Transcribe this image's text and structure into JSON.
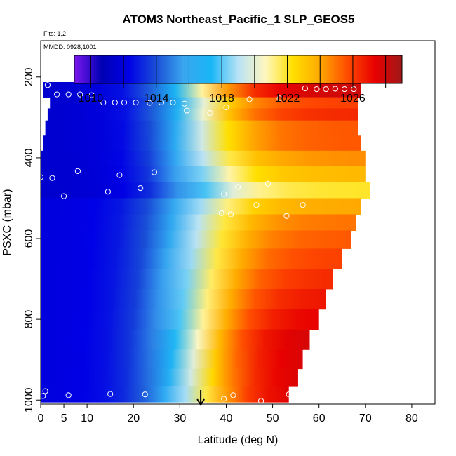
{
  "chart_data": {
    "type": "heatmap",
    "title": "ATOM3 Northeast_Pacific_1 SLP_GEOS5",
    "subtitle_flights": "Flts: 1,2",
    "subtitle_dates": "MMDD: 0928,1001",
    "xlabel": "Latitude (deg N)",
    "ylabel": "PSXC (mbar)",
    "xlim": [
      0,
      85
    ],
    "ylim": [
      1010,
      110
    ],
    "xticks": [
      0,
      5,
      10,
      20,
      30,
      40,
      50,
      60,
      70,
      80
    ],
    "xtick_labels": [
      "0",
      "5",
      "10",
      "20",
      "30",
      "40",
      "50",
      "60",
      "70",
      "80"
    ],
    "yticks": [
      200,
      400,
      600,
      800,
      1000
    ],
    "ytick_labels": [
      "200",
      "400",
      "600",
      "800",
      "1000"
    ],
    "colorbar": {
      "min": 1009,
      "max": 1029,
      "ticks": [
        1010,
        1014,
        1018,
        1022,
        1026
      ],
      "tick_labels": [
        "1010",
        "1014",
        "1018",
        "1022",
        "1026"
      ],
      "colors": [
        "#7a17ec",
        "#0000b4",
        "#0000e6",
        "#1a4fd6",
        "#3aa6f0",
        "#18b6f5",
        "#b8e2f5",
        "#fff7c0",
        "#ffe000",
        "#ffa800",
        "#ff4c00",
        "#e80000",
        "#a01818"
      ]
    },
    "rows": [
      {
        "p": 190,
        "lat0": 10.9,
        "lat1": 29.5,
        "v0": 1012,
        "v1": 1011
      },
      {
        "p": 235,
        "lat0": 0.5,
        "lat1": 69.0,
        "v0": 1011.5,
        "v1": 1028
      },
      {
        "p": 265,
        "lat0": 2.0,
        "lat1": 68.5,
        "v0": 1011.5,
        "v1": 1026
      },
      {
        "p": 290,
        "lat0": 1.5,
        "lat1": 68.5,
        "v0": 1011.5,
        "v1": 1026.5
      },
      {
        "p": 325,
        "lat0": 1.0,
        "lat1": 68.5,
        "v0": 1011.5,
        "v1": 1025.5
      },
      {
        "p": 365,
        "lat0": 0.5,
        "lat1": 69.0,
        "v0": 1011.5,
        "v1": 1025.5
      },
      {
        "p": 400,
        "lat0": 0.0,
        "lat1": 70.0,
        "v0": 1011.5,
        "v1": 1024.5
      },
      {
        "p": 440,
        "lat0": -0.5,
        "lat1": 70.0,
        "v0": 1011.5,
        "v1": 1023.5
      },
      {
        "p": 480,
        "lat0": 0.0,
        "lat1": 71.0,
        "v0": 1011.5,
        "v1": 1022
      },
      {
        "p": 520,
        "lat0": 0.0,
        "lat1": 69.0,
        "v0": 1012,
        "v1": 1024
      },
      {
        "p": 560,
        "lat0": 0.0,
        "lat1": 68.0,
        "v0": 1012,
        "v1": 1025
      },
      {
        "p": 600,
        "lat0": 0.0,
        "lat1": 67.0,
        "v0": 1012,
        "v1": 1025.5
      },
      {
        "p": 650,
        "lat0": 0.0,
        "lat1": 65.0,
        "v0": 1012,
        "v1": 1026
      },
      {
        "p": 700,
        "lat0": 0.0,
        "lat1": 63.0,
        "v0": 1012,
        "v1": 1026.5
      },
      {
        "p": 750,
        "lat0": 0.0,
        "lat1": 61.5,
        "v0": 1012,
        "v1": 1027
      },
      {
        "p": 800,
        "lat0": 0.0,
        "lat1": 60.0,
        "v0": 1012,
        "v1": 1027.5
      },
      {
        "p": 850,
        "lat0": 0.0,
        "lat1": 58.0,
        "v0": 1012,
        "v1": 1028
      },
      {
        "p": 900,
        "lat0": 0.0,
        "lat1": 56.5,
        "v0": 1012,
        "v1": 1028
      },
      {
        "p": 945,
        "lat0": 0.0,
        "lat1": 55.5,
        "v0": 1012,
        "v1": 1028
      },
      {
        "p": 985,
        "lat0": 0.0,
        "lat1": 53.5,
        "v0": 1012,
        "v1": 1028
      }
    ],
    "points": [
      {
        "lat": 11.0,
        "p": 205
      },
      {
        "lat": 19.5,
        "p": 203
      },
      {
        "lat": 26.5,
        "p": 192
      },
      {
        "lat": 29.5,
        "p": 198
      },
      {
        "lat": 1.5,
        "p": 220
      },
      {
        "lat": 57.0,
        "p": 228
      },
      {
        "lat": 59.5,
        "p": 230
      },
      {
        "lat": 61.5,
        "p": 230
      },
      {
        "lat": 63.5,
        "p": 229
      },
      {
        "lat": 65.5,
        "p": 230
      },
      {
        "lat": 67.5,
        "p": 230
      },
      {
        "lat": 3.5,
        "p": 243
      },
      {
        "lat": 6.0,
        "p": 243
      },
      {
        "lat": 8.5,
        "p": 243
      },
      {
        "lat": 11.0,
        "p": 245
      },
      {
        "lat": 45.0,
        "p": 255
      },
      {
        "lat": 51.5,
        "p": 253
      },
      {
        "lat": 13.5,
        "p": 263
      },
      {
        "lat": 16.0,
        "p": 263
      },
      {
        "lat": 18.0,
        "p": 263
      },
      {
        "lat": 20.5,
        "p": 263
      },
      {
        "lat": 23.5,
        "p": 264
      },
      {
        "lat": 26.0,
        "p": 263
      },
      {
        "lat": 28.5,
        "p": 263
      },
      {
        "lat": 31.0,
        "p": 266
      },
      {
        "lat": 40.0,
        "p": 275
      },
      {
        "lat": 31.5,
        "p": 283
      },
      {
        "lat": 36.5,
        "p": 289
      },
      {
        "lat": 8.0,
        "p": 433
      },
      {
        "lat": 24.5,
        "p": 436
      },
      {
        "lat": 0.0,
        "p": 448
      },
      {
        "lat": 2.5,
        "p": 450
      },
      {
        "lat": 17.0,
        "p": 443
      },
      {
        "lat": 42.5,
        "p": 472
      },
      {
        "lat": 49.0,
        "p": 464
      },
      {
        "lat": 14.5,
        "p": 484
      },
      {
        "lat": 21.5,
        "p": 475
      },
      {
        "lat": 39.5,
        "p": 490
      },
      {
        "lat": 5.0,
        "p": 495
      },
      {
        "lat": 46.5,
        "p": 517
      },
      {
        "lat": 56.5,
        "p": 517
      },
      {
        "lat": 39.0,
        "p": 537
      },
      {
        "lat": 41.0,
        "p": 540
      },
      {
        "lat": 53.0,
        "p": 544
      },
      {
        "lat": 0.5,
        "p": 990
      },
      {
        "lat": 1.0,
        "p": 978
      },
      {
        "lat": 6.0,
        "p": 988
      },
      {
        "lat": 15.0,
        "p": 985
      },
      {
        "lat": 22.5,
        "p": 986
      },
      {
        "lat": 39.5,
        "p": 997
      },
      {
        "lat": 41.5,
        "p": 988
      },
      {
        "lat": 47.5,
        "p": 1002
      },
      {
        "lat": 53.5,
        "p": 986
      }
    ],
    "arrow_lat": 34.5,
    "point_color": "#ffffff",
    "axis_color": "#000000"
  }
}
